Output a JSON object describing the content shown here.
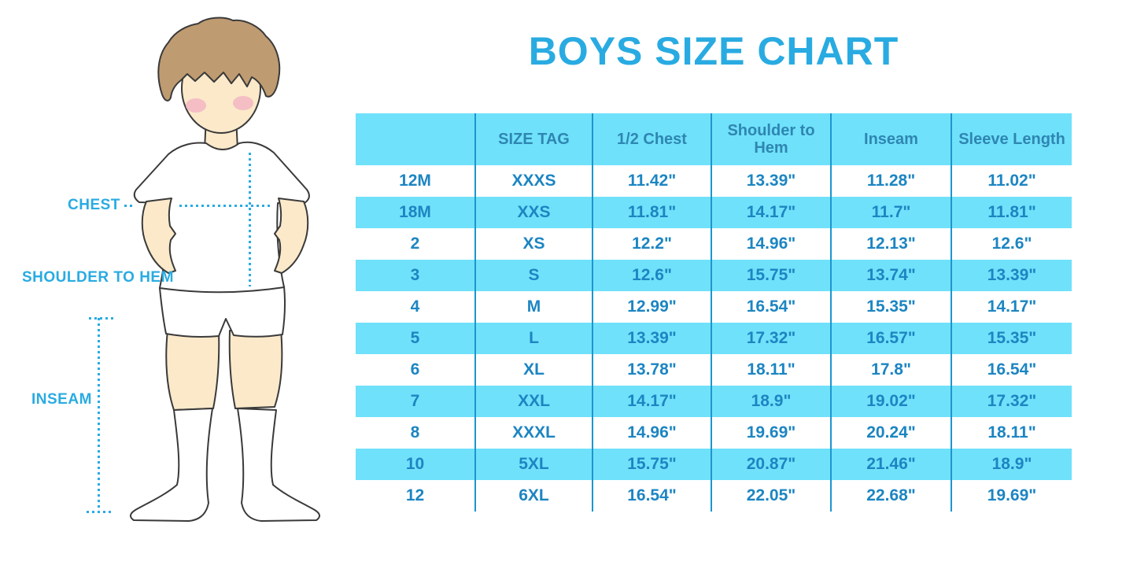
{
  "title": "BOYS SIZE CHART",
  "figure": {
    "labels": {
      "chest": "CHEST",
      "shoulder_to_hem": "SHOULDER TO HEM",
      "inseam": "INSEAM"
    }
  },
  "colors": {
    "accent_blue": "#29ABE2",
    "table_header_bg": "#70E1FA",
    "table_alt_row_bg": "#70E1FA",
    "table_row_bg": "#FFFFFF",
    "header_text": "#2E86B2",
    "cell_text": "#1C85C2",
    "divider_line": "#1B96CF",
    "skin": "#FBE9CA",
    "hair": "#BF9B72",
    "blush": "#F2B6C3",
    "outline": "#3A3A3A"
  },
  "chart_data": {
    "type": "table",
    "title": "BOYS SIZE CHART",
    "columns": [
      "",
      "SIZE TAG",
      "1/2 Chest",
      "Shoulder to Hem",
      "Inseam",
      "Sleeve Length"
    ],
    "rows": [
      [
        "12M",
        "XXXS",
        "11.42\"",
        "13.39\"",
        "11.28\"",
        "11.02\""
      ],
      [
        "18M",
        "XXS",
        "11.81\"",
        "14.17\"",
        "11.7\"",
        "11.81\""
      ],
      [
        "2",
        "XS",
        "12.2\"",
        "14.96\"",
        "12.13\"",
        "12.6\""
      ],
      [
        "3",
        "S",
        "12.6\"",
        "15.75\"",
        "13.74\"",
        "13.39\""
      ],
      [
        "4",
        "M",
        "12.99\"",
        "16.54\"",
        "15.35\"",
        "14.17\""
      ],
      [
        "5",
        "L",
        "13.39\"",
        "17.32\"",
        "16.57\"",
        "15.35\""
      ],
      [
        "6",
        "XL",
        "13.78\"",
        "18.11\"",
        "17.8\"",
        "16.54\""
      ],
      [
        "7",
        "XXL",
        "14.17\"",
        "18.9\"",
        "19.02\"",
        "17.32\""
      ],
      [
        "8",
        "XXXL",
        "14.96\"",
        "19.69\"",
        "20.24\"",
        "18.11\""
      ],
      [
        "10",
        "5XL",
        "15.75\"",
        "20.87\"",
        "21.46\"",
        "18.9\""
      ],
      [
        "12",
        "6XL",
        "16.54\"",
        "22.05\"",
        "22.68\"",
        "19.69\""
      ]
    ],
    "alternating_blue_row_indices": [
      1,
      3,
      5,
      7,
      9
    ],
    "measurement_unit": "inches"
  }
}
